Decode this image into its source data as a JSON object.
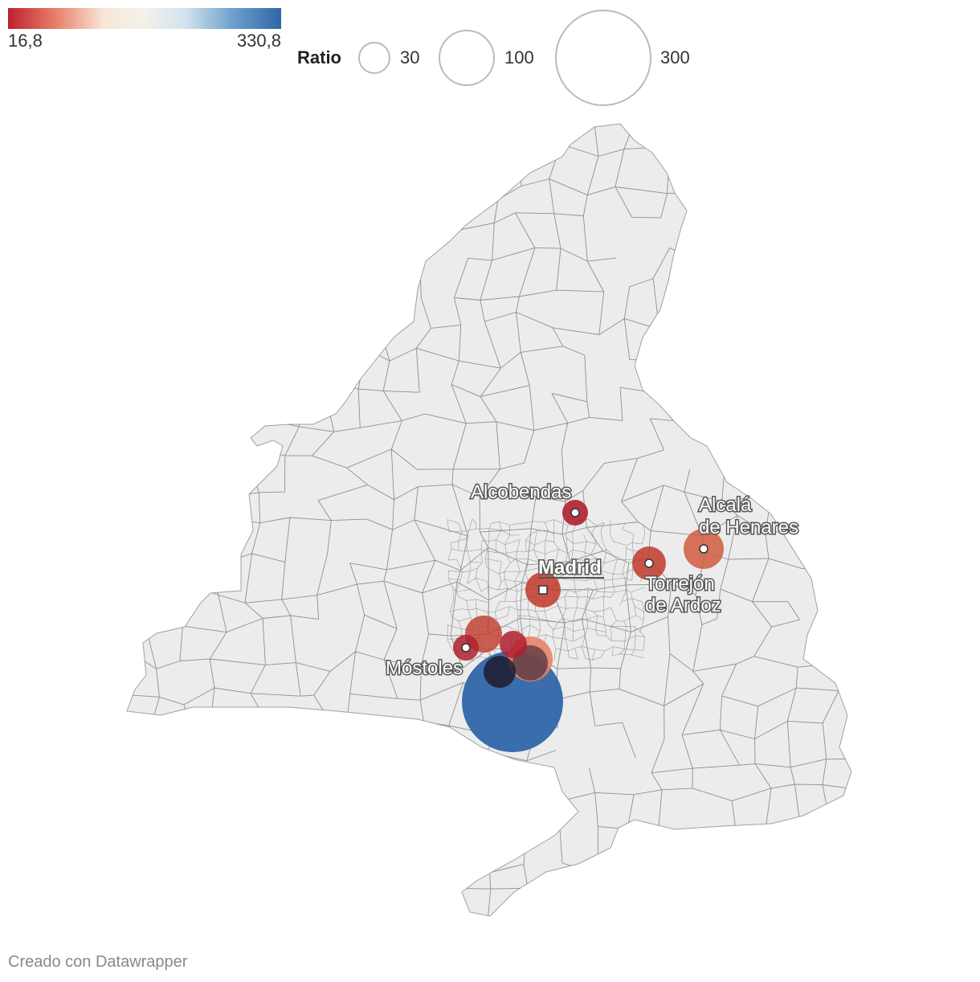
{
  "colorscale": {
    "min_label": "16,8",
    "max_label": "330,8",
    "colors": [
      "#c0202e",
      "#e8836a",
      "#f8e6d8",
      "#f4f1ea",
      "#d2e3ee",
      "#6fa1cc",
      "#2f66a8"
    ]
  },
  "size_legend": {
    "title": "Ratio",
    "items": [
      {
        "label": "30"
      },
      {
        "label": "100"
      },
      {
        "label": "300"
      }
    ]
  },
  "map": {
    "region_fill": "#ececec",
    "border_color": "#8f8f8f",
    "cities": [
      {
        "name": "Alcobendas",
        "lines": [
          "Alcobendas"
        ],
        "capital": false
      },
      {
        "name": "Alcalá de Henares",
        "lines": [
          "Alcalá",
          "de Henares"
        ],
        "capital": false
      },
      {
        "name": "Madrid",
        "lines": [
          "Madrid"
        ],
        "capital": true
      },
      {
        "name": "Torrejón de Ardoz",
        "lines": [
          "Torrejón",
          "de Ardoz"
        ],
        "capital": false
      },
      {
        "name": "Móstoles",
        "lines": [
          "Móstoles"
        ],
        "capital": false
      }
    ],
    "bubble_colors": [
      "#2f66a8",
      "#c23a2c",
      "#b0202f",
      "#e8836a",
      "#1e1a2e"
    ]
  },
  "footer": {
    "credit": "Creado con Datawrapper"
  }
}
